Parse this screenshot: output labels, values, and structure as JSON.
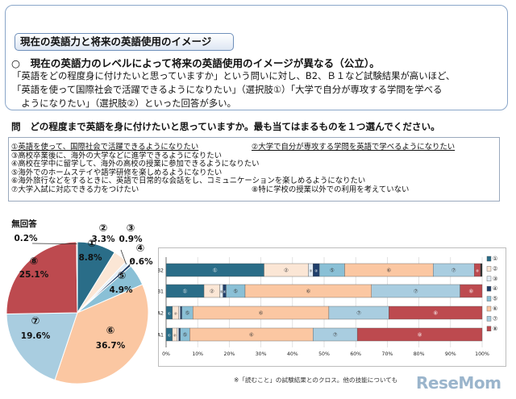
{
  "heading": {
    "title": "現在の英語力と将来の英語使用のイメージ",
    "lead": "○　現在の英語力のレベルによって将来の英語使用のイメージが異なる（公立）。",
    "body": [
      "「英語をどの程度身に付けたいと思っていますか」という問いに対し、B2、Ｂ１など試験結果が高いほど、",
      "「英語を使って国際社会で活躍できるようになりたい」（選択肢①）「大学で自分が専攻する学問を学べる",
      "　ようになりたい」（選択肢②）といった回答が多い。"
    ]
  },
  "question": "問　どの程度まで英語を身に付けたいと思っていますか。最も当てはまるものを１つ選んでください。",
  "choices": [
    "①英語を使って、国際社会で活躍できるようになりたい",
    "②大学で自分が専攻する学問を英語で学べるようになりたい",
    "③高校卒業後に、海外の大学などに進学できるようになりたい",
    "④高校在学中に留学して、海外の高校の授業に参加できるようになりたい",
    "⑤海外でのホームステイや語学研修を楽しめるようになりたい",
    "⑥海外旅行などをするときに、英語で日常的な会話をし、コミュニケーションを楽しめるようになりたい",
    "⑦大学入試に対応できる力をつけたい",
    "⑧特に学校の授業以外での利用を考えていない"
  ],
  "footnote": "※「読むこと」の試験結果とのクロス。他の技能についても",
  "logo": "ReseMom",
  "colors": {
    "c1": "#2a6d88",
    "c2": "#fbe6d5",
    "c3": "#e3edf6",
    "c4": "#1f3f6b",
    "c5": "#8ac0d6",
    "c6": "#fbc7a2",
    "c7": "#a9cde0",
    "c8": "#bd4a4f",
    "noans": "#262626"
  },
  "chart_data": [
    {
      "type": "pie",
      "labels": [
        "①",
        "②",
        "③",
        "④",
        "⑤",
        "⑥",
        "⑦",
        "⑧",
        "無回答"
      ],
      "values": [
        8.8,
        3.3,
        0.9,
        0.6,
        4.9,
        36.7,
        19.6,
        25.1,
        0.2
      ],
      "value_labels": [
        "8.8%",
        "3.3%",
        "0.9%",
        "0.6%",
        "4.9%",
        "36.7%",
        "19.6%",
        "25.1%",
        "0.2%"
      ]
    },
    {
      "type": "bar",
      "orientation": "horizontal",
      "stacked": true,
      "categories": [
        "B2",
        "B1",
        "A2",
        "A1"
      ],
      "series": [
        {
          "name": "①",
          "values": [
            31,
            12,
            2,
            2
          ]
        },
        {
          "name": "②",
          "values": [
            14,
            5,
            2,
            1.5
          ]
        },
        {
          "name": "③",
          "values": [
            1.5,
            1,
            0.5,
            0.5
          ]
        },
        {
          "name": "④",
          "values": [
            2,
            1,
            0.5,
            0.5
          ]
        },
        {
          "name": "⑤",
          "values": [
            8,
            6,
            3.5,
            3
          ]
        },
        {
          "name": "⑥",
          "values": [
            28,
            40,
            43,
            39
          ]
        },
        {
          "name": "⑦",
          "values": [
            13,
            28,
            19,
            14
          ]
        },
        {
          "name": "⑧",
          "values": [
            2,
            7,
            29.5,
            39.5
          ]
        },
        {
          "name": "",
          "values": [
            0.5,
            0,
            0,
            0
          ]
        }
      ],
      "xticks": [
        "0%",
        "10%",
        "20%",
        "30%",
        "40%",
        "50%",
        "60%",
        "70%",
        "80%",
        "90%",
        "100%"
      ],
      "xlim": [
        0,
        100
      ],
      "legend": [
        "①",
        "②",
        "③",
        "④",
        "⑤",
        "⑥",
        "⑦",
        "⑧"
      ],
      "legend_position": "right"
    }
  ]
}
